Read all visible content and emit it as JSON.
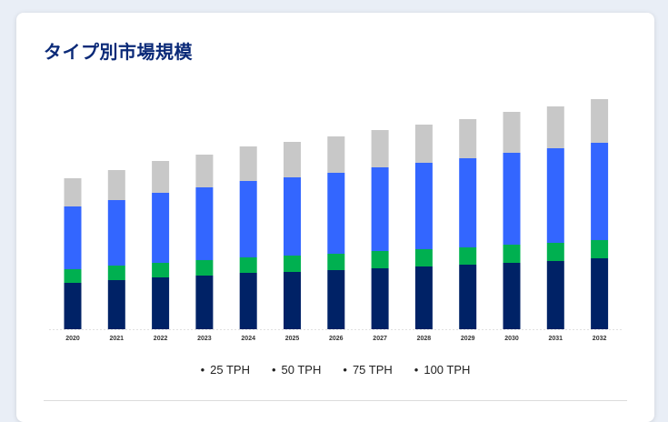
{
  "title": "タイプ別市場規模",
  "chart_data": {
    "type": "bar",
    "stacked": true,
    "categories": [
      "2020",
      "2021",
      "2022",
      "2023",
      "2024",
      "2025",
      "2026",
      "2027",
      "2028",
      "2029",
      "2030",
      "2031",
      "2032"
    ],
    "series": [
      {
        "name": "25 TPH",
        "color": "#002266",
        "values": [
          51,
          54,
          57,
          59,
          62,
          63,
          65,
          67,
          69,
          71,
          73,
          75,
          78
        ]
      },
      {
        "name": "50 TPH",
        "color": "#00b050",
        "values": [
          15,
          16,
          16,
          17,
          17,
          18,
          18,
          19,
          19,
          19,
          20,
          20,
          20
        ]
      },
      {
        "name": "75 TPH",
        "color": "#3366ff",
        "values": [
          69,
          72,
          77,
          80,
          84,
          86,
          89,
          92,
          95,
          98,
          101,
          104,
          107
        ]
      },
      {
        "name": "100 TPH",
        "color": "#c8c8c8",
        "values": [
          31,
          33,
          35,
          36,
          38,
          39,
          40,
          41,
          42,
          43,
          45,
          46,
          48
        ]
      }
    ],
    "legend_position": "bottom",
    "grid": false,
    "ylim": [
      0,
      260
    ]
  }
}
